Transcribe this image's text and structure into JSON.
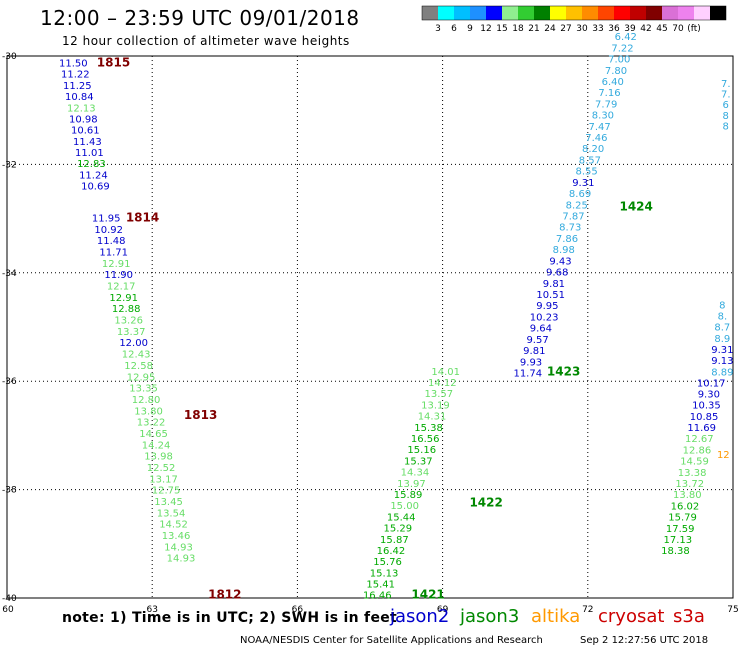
{
  "header": {
    "title": "12:00 – 23:59 UTC 09/01/2018",
    "subtitle": "12 hour collection of altimeter wave heights"
  },
  "legend": {
    "ticks": [
      "3",
      "6",
      "9",
      "12",
      "15",
      "18",
      "21",
      "24",
      "27",
      "30",
      "33",
      "36",
      "39",
      "42",
      "45",
      "70",
      "(ft)"
    ],
    "colors": [
      "#808080",
      "#00ffff",
      "#00bfff",
      "#1e90ff",
      "#0000ff",
      "#90ee90",
      "#32cd32",
      "#008000",
      "#ffff00",
      "#ffc000",
      "#ff8c00",
      "#ff4500",
      "#ff0000",
      "#c00000",
      "#800000",
      "#da70d6",
      "#ee82ee",
      "#ffd0ff",
      "#000000"
    ]
  },
  "footer": {
    "note": "note: 1) Time is in UTC; 2) SWH is in feet",
    "satellites": [
      {
        "name": "jason2",
        "color": "#0000cc"
      },
      {
        "name": "jason3",
        "color": "#008800"
      },
      {
        "name": "altika",
        "color": "#ff9900"
      },
      {
        "name": "cryosat",
        "color": "#cc0000"
      },
      {
        "name": "s3a",
        "color": "#cc0000"
      }
    ],
    "credit": "NOAA/NESDIS Center for Satellite Applications and Research",
    "timestamp": "Sep  2 12:27:56 UTC 2018"
  },
  "colors": {
    "blue": "#0000cc",
    "light_green": "#66dd66",
    "green": "#00aa00",
    "dark_red": "#800000",
    "cyan": "#33aadd",
    "orange": "#ff9900",
    "dark_green": "#008800"
  },
  "chart_data": {
    "type": "scatter",
    "x_ticks": [
      60,
      63,
      66,
      69,
      72,
      75
    ],
    "y_ticks": [
      -30,
      -32,
      -34,
      -36,
      -38,
      -40
    ],
    "xlim": [
      60,
      75
    ],
    "ylim": [
      -40,
      -30
    ],
    "grid": true,
    "track_labels": [
      {
        "text": "1815",
        "x": 62.2,
        "y": -30.12,
        "color": "dark_red"
      },
      {
        "text": "1814",
        "x": 62.8,
        "y": -32.98,
        "color": "dark_red"
      },
      {
        "text": "1813",
        "x": 64.0,
        "y": -36.62,
        "color": "dark_red"
      },
      {
        "text": "1812",
        "x": 64.5,
        "y": -39.94,
        "color": "dark_red"
      },
      {
        "text": "1424",
        "x": 73.0,
        "y": -32.78,
        "color": "dark_green"
      },
      {
        "text": "1423",
        "x": 71.5,
        "y": -35.82,
        "color": "dark_green"
      },
      {
        "text": "1422",
        "x": 69.9,
        "y": -38.24,
        "color": "dark_green"
      },
      {
        "text": "1421",
        "x": 68.7,
        "y": -39.94,
        "color": "dark_green"
      }
    ],
    "series": [
      {
        "x_start": 61.37,
        "x_step": 0.0415,
        "y_start": -30.12,
        "y_step": -0.2065,
        "points": [
          [
            "11.50",
            "blue"
          ],
          [
            "11.22",
            "blue"
          ],
          [
            "11.25",
            "blue"
          ],
          [
            "10.84",
            "blue"
          ],
          [
            "12.13",
            "light_green"
          ],
          [
            "10.98",
            "blue"
          ],
          [
            "10.61",
            "blue"
          ],
          [
            "11.43",
            "blue"
          ],
          [
            "11.01",
            "blue"
          ],
          [
            "12.83",
            "green"
          ],
          [
            "11.24",
            "blue"
          ],
          [
            "10.69",
            "blue"
          ]
        ]
      },
      {
        "x_start": 62.05,
        "x_step": 0.0515,
        "y_start": -32.98,
        "y_step": -0.2092,
        "points": [
          [
            "11.95",
            "blue"
          ],
          [
            "10.92",
            "blue"
          ],
          [
            "11.48",
            "blue"
          ],
          [
            "11.71",
            "blue"
          ],
          [
            "12.91",
            "light_green"
          ],
          [
            "11.90",
            "blue"
          ],
          [
            "12.17",
            "light_green"
          ],
          [
            "12.91",
            "green"
          ],
          [
            "12.88",
            "green"
          ],
          [
            "13.26",
            "light_green"
          ],
          [
            "13.37",
            "light_green"
          ],
          [
            "12.00",
            "blue"
          ],
          [
            "12.43",
            "light_green"
          ],
          [
            "12.58",
            "light_green"
          ],
          [
            "12.95",
            "light_green"
          ],
          [
            "13.35",
            "light_green"
          ],
          [
            "12.80",
            "light_green"
          ],
          [
            "13.80",
            "light_green"
          ],
          [
            "13.22",
            "light_green"
          ],
          [
            "14.65",
            "light_green"
          ],
          [
            "14.24",
            "light_green"
          ],
          [
            "13.98",
            "light_green"
          ],
          [
            "12.52",
            "light_green"
          ],
          [
            "13.17",
            "light_green"
          ],
          [
            "12.75",
            "light_green"
          ],
          [
            "13.45",
            "light_green"
          ],
          [
            "13.54",
            "light_green"
          ],
          [
            "14.52",
            "light_green"
          ],
          [
            "13.46",
            "light_green"
          ],
          [
            "14.93",
            "light_green"
          ],
          [
            "14.93",
            "light_green"
          ]
        ]
      },
      {
        "x_start": 67.65,
        "x_step": 0.0707,
        "y_start": -39.94,
        "y_step": 0.2066,
        "points": [
          [
            "16.46",
            "green"
          ],
          [
            "15.41",
            "green"
          ],
          [
            "15.13",
            "green"
          ],
          [
            "15.76",
            "green"
          ],
          [
            "16.42",
            "green"
          ],
          [
            "15.87",
            "green"
          ],
          [
            "15.29",
            "green"
          ],
          [
            "15.44",
            "green"
          ],
          [
            "15.00",
            "light_green"
          ],
          [
            "15.89",
            "green"
          ],
          [
            "13.97",
            "light_green"
          ],
          [
            "14.34",
            "light_green"
          ],
          [
            "15.37",
            "green"
          ],
          [
            "15.16",
            "green"
          ],
          [
            "16.56",
            "green"
          ],
          [
            "15.38",
            "green"
          ],
          [
            "14.31",
            "light_green"
          ],
          [
            "13.19",
            "light_green"
          ],
          [
            "13.57",
            "light_green"
          ],
          [
            "14.12",
            "light_green"
          ],
          [
            "14.01",
            "light_green"
          ]
        ]
      },
      {
        "x_start": 70.76,
        "x_step": 0.0675,
        "y_start": -35.84,
        "y_step": 0.2069,
        "points": [
          [
            "11.74",
            "blue"
          ],
          [
            "9.93",
            "blue"
          ],
          [
            "9.81",
            "blue"
          ],
          [
            "9.57",
            "blue"
          ],
          [
            "9.64",
            "blue"
          ],
          [
            "10.23",
            "blue"
          ],
          [
            "9.95",
            "blue"
          ],
          [
            "10.51",
            "blue"
          ],
          [
            "9.81",
            "blue"
          ],
          [
            "9.68",
            "blue"
          ],
          [
            "9.43",
            "blue"
          ],
          [
            "8.98",
            "cyan"
          ],
          [
            "7.86",
            "cyan"
          ],
          [
            "8.73",
            "cyan"
          ],
          [
            "7.87",
            "cyan"
          ],
          [
            "8.25",
            "cyan"
          ],
          [
            "8.69",
            "cyan"
          ],
          [
            "9.31",
            "blue"
          ],
          [
            "8.55",
            "cyan"
          ],
          [
            "8.57",
            "cyan"
          ],
          [
            "8.20",
            "cyan"
          ],
          [
            "7.46",
            "cyan"
          ],
          [
            "7.47",
            "cyan"
          ],
          [
            "8.30",
            "cyan"
          ],
          [
            "7.79",
            "cyan"
          ],
          [
            "7.16",
            "cyan"
          ],
          [
            "6.40",
            "cyan"
          ],
          [
            "7.80",
            "cyan"
          ],
          [
            "7.00",
            "cyan"
          ],
          [
            "7.22",
            "cyan"
          ],
          [
            "6.42",
            "cyan"
          ]
        ]
      },
      {
        "x_start": 74.55,
        "x_step": -0.0493,
        "y_start": -36.02,
        "y_step": -0.2065,
        "points": [
          [
            "10.17",
            "blue"
          ],
          [
            "9.30",
            "blue"
          ],
          [
            "10.35",
            "blue"
          ],
          [
            "10.85",
            "blue"
          ],
          [
            "11.69",
            "blue"
          ],
          [
            "12.67",
            "light_green"
          ],
          [
            "12.86",
            "light_green"
          ],
          [
            "14.59",
            "light_green"
          ],
          [
            "13.38",
            "light_green"
          ],
          [
            "13.72",
            "light_green"
          ],
          [
            "13.80",
            "light_green"
          ],
          [
            "16.02",
            "green"
          ],
          [
            "15.79",
            "green"
          ],
          [
            "17.59",
            "green"
          ],
          [
            "17.13",
            "green"
          ],
          [
            "18.38",
            "green"
          ]
        ]
      },
      {
        "x_start": 74.78,
        "x_step": 0.0,
        "y_start": -35.82,
        "y_step": 0.2066,
        "points": [
          [
            "8.89",
            "cyan"
          ],
          [
            "9.13",
            "blue"
          ],
          [
            "9.31",
            "blue"
          ],
          [
            "8.9",
            "cyan"
          ],
          [
            "8.7",
            "cyan"
          ],
          [
            "8.",
            "cyan"
          ],
          [
            "8",
            "cyan"
          ]
        ]
      },
      {
        "x_start": 74.85,
        "x_step": 0.0,
        "y_start": -31.28,
        "y_step": 0.195,
        "points": [
          [
            "8",
            "cyan"
          ],
          [
            "8",
            "cyan"
          ],
          [
            "6",
            "cyan"
          ],
          [
            "7.",
            "cyan"
          ],
          [
            "7.",
            "cyan"
          ]
        ]
      },
      {
        "x_start": 74.8,
        "x_step": 0.0,
        "y_start": -37.34,
        "y_step": 0.0,
        "points": [
          [
            "12",
            "orange"
          ]
        ]
      }
    ]
  }
}
